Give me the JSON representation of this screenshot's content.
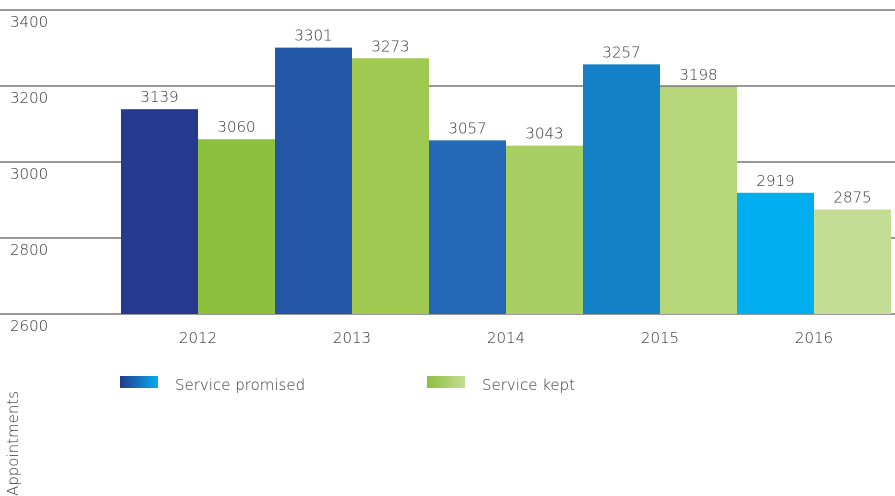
{
  "chart_data": {
    "type": "bar",
    "y_label": "Appointments",
    "categories": [
      "2012",
      "2013",
      "2014",
      "2015",
      "2016"
    ],
    "series": [
      {
        "name": "Service promised",
        "color": [
          "#253a8f",
          "#2456a6",
          "#2369b5",
          "#1481c6",
          "#00aeef"
        ],
        "values": [
          3139,
          3301,
          3057,
          3257,
          2919
        ]
      },
      {
        "name": "Service kept",
        "color": [
          "#8dc03f",
          "#a0c952",
          "#a8cf64",
          "#b6d67a",
          "#c3dd95"
        ],
        "values": [
          3060,
          3273,
          3043,
          3198,
          2875
        ]
      }
    ],
    "ylim": [
      2600,
      3400
    ],
    "yticks": [
      2600,
      2800,
      3000,
      3200,
      3400
    ],
    "grid": true
  }
}
